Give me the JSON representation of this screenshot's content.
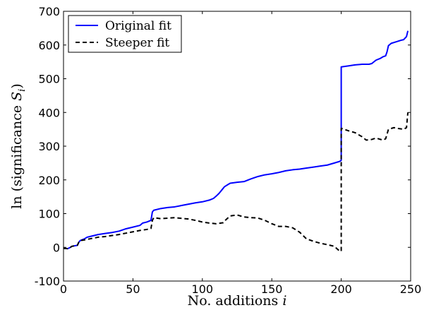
{
  "chart_data": {
    "type": "line",
    "xlabel": "No. additions i",
    "ylabel": "ln (significance S_i)",
    "xlabel_parts": {
      "text": "No. additions ",
      "var": "i"
    },
    "ylabel_parts": {
      "text": "ln (significance ",
      "var": "S",
      "sub": "i",
      "close": ")"
    },
    "xlim": [
      0,
      250
    ],
    "ylim": [
      -100,
      700
    ],
    "xticks": [
      "0",
      "50",
      "100",
      "150",
      "200",
      "250"
    ],
    "yticks": [
      "-100",
      "0",
      "100",
      "200",
      "300",
      "400",
      "500",
      "600",
      "700"
    ],
    "grid": false,
    "legend_position": "top-left",
    "series": [
      {
        "name": "Original fit",
        "color": "#0000ff",
        "style": "solid",
        "points": [
          [
            0,
            -3
          ],
          [
            3,
            -4
          ],
          [
            5,
            0
          ],
          [
            6,
            3
          ],
          [
            10,
            6
          ],
          [
            11,
            15
          ],
          [
            12,
            20
          ],
          [
            15,
            25
          ],
          [
            17,
            30
          ],
          [
            20,
            33
          ],
          [
            25,
            38
          ],
          [
            30,
            41
          ],
          [
            35,
            44
          ],
          [
            40,
            48
          ],
          [
            45,
            55
          ],
          [
            50,
            60
          ],
          [
            55,
            65
          ],
          [
            57,
            72
          ],
          [
            60,
            75
          ],
          [
            63,
            80
          ],
          [
            64,
            105
          ],
          [
            65,
            110
          ],
          [
            70,
            115
          ],
          [
            75,
            118
          ],
          [
            80,
            120
          ],
          [
            85,
            124
          ],
          [
            90,
            128
          ],
          [
            95,
            132
          ],
          [
            100,
            135
          ],
          [
            105,
            140
          ],
          [
            108,
            145
          ],
          [
            110,
            152
          ],
          [
            112,
            160
          ],
          [
            114,
            170
          ],
          [
            116,
            180
          ],
          [
            118,
            185
          ],
          [
            120,
            190
          ],
          [
            125,
            193
          ],
          [
            130,
            195
          ],
          [
            135,
            203
          ],
          [
            140,
            210
          ],
          [
            145,
            215
          ],
          [
            150,
            218
          ],
          [
            155,
            222
          ],
          [
            160,
            227
          ],
          [
            165,
            230
          ],
          [
            170,
            232
          ],
          [
            175,
            235
          ],
          [
            180,
            238
          ],
          [
            185,
            241
          ],
          [
            190,
            244
          ],
          [
            195,
            250
          ],
          [
            199,
            255
          ],
          [
            200,
            258
          ],
          [
            200,
            535
          ],
          [
            205,
            538
          ],
          [
            210,
            541
          ],
          [
            215,
            543
          ],
          [
            220,
            543
          ],
          [
            222,
            545
          ],
          [
            225,
            555
          ],
          [
            228,
            560
          ],
          [
            230,
            565
          ],
          [
            232,
            568
          ],
          [
            233,
            580
          ],
          [
            234,
            598
          ],
          [
            236,
            605
          ],
          [
            240,
            610
          ],
          [
            243,
            614
          ],
          [
            245,
            616
          ],
          [
            247,
            625
          ],
          [
            248,
            642
          ]
        ]
      },
      {
        "name": "Steeper fit",
        "color": "#000000",
        "style": "dashed",
        "points": [
          [
            0,
            -3
          ],
          [
            3,
            -4
          ],
          [
            5,
            0
          ],
          [
            6,
            3
          ],
          [
            10,
            6
          ],
          [
            11,
            15
          ],
          [
            12,
            20
          ],
          [
            15,
            22
          ],
          [
            20,
            26
          ],
          [
            25,
            30
          ],
          [
            30,
            32
          ],
          [
            35,
            35
          ],
          [
            40,
            38
          ],
          [
            45,
            42
          ],
          [
            50,
            46
          ],
          [
            55,
            50
          ],
          [
            60,
            53
          ],
          [
            63,
            56
          ],
          [
            64,
            80
          ],
          [
            65,
            88
          ],
          [
            70,
            85
          ],
          [
            80,
            88
          ],
          [
            90,
            84
          ],
          [
            95,
            80
          ],
          [
            100,
            75
          ],
          [
            105,
            72
          ],
          [
            110,
            70
          ],
          [
            115,
            73
          ],
          [
            117,
            82
          ],
          [
            120,
            93
          ],
          [
            125,
            96
          ],
          [
            130,
            90
          ],
          [
            135,
            88
          ],
          [
            140,
            87
          ],
          [
            145,
            80
          ],
          [
            150,
            70
          ],
          [
            155,
            62
          ],
          [
            160,
            62
          ],
          [
            165,
            58
          ],
          [
            170,
            45
          ],
          [
            175,
            25
          ],
          [
            180,
            18
          ],
          [
            185,
            12
          ],
          [
            190,
            8
          ],
          [
            195,
            3
          ],
          [
            198,
            -8
          ],
          [
            200,
            -12
          ],
          [
            200,
            353
          ],
          [
            205,
            346
          ],
          [
            210,
            340
          ],
          [
            215,
            328
          ],
          [
            218,
            318
          ],
          [
            222,
            320
          ],
          [
            225,
            324
          ],
          [
            230,
            318
          ],
          [
            232,
            322
          ],
          [
            234,
            350
          ],
          [
            238,
            355
          ],
          [
            240,
            353
          ],
          [
            245,
            350
          ],
          [
            247,
            355
          ],
          [
            248,
            400
          ]
        ]
      }
    ]
  }
}
